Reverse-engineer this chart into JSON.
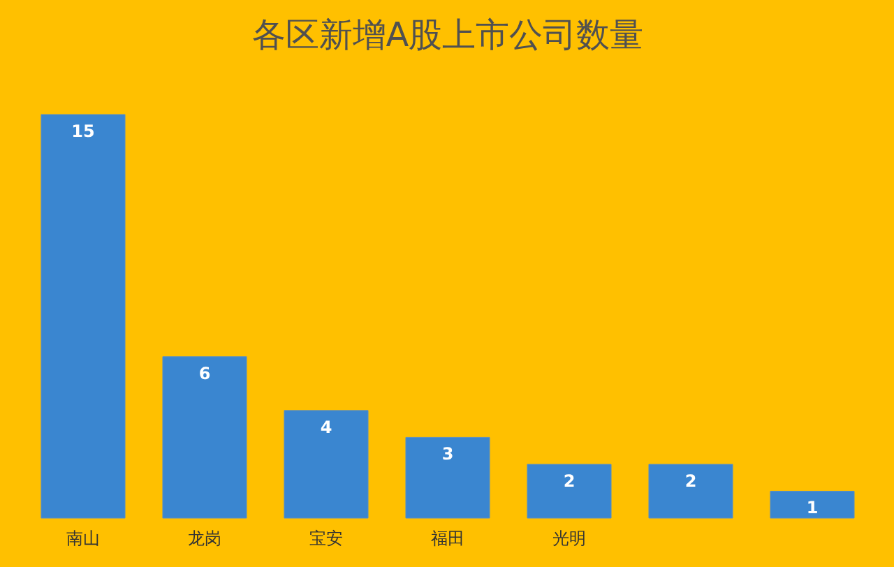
{
  "chart_data": {
    "type": "bar",
    "title": "各区新增A股上市公司数量",
    "categories": [
      "南山",
      "龙岗",
      "宝安",
      "福田",
      "光明",
      null,
      null
    ],
    "values": [
      15,
      6,
      4,
      3,
      2,
      2,
      1
    ],
    "color": "#3a86d0",
    "data_labels": true
  }
}
